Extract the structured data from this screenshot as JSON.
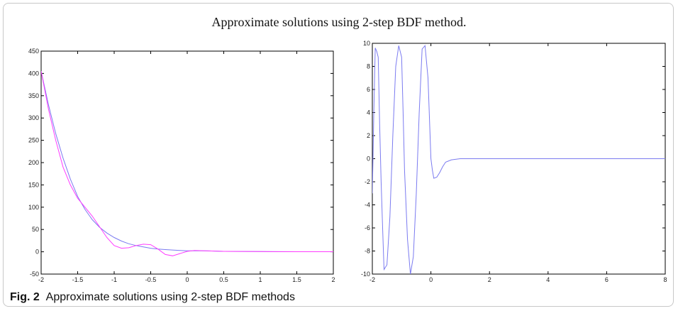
{
  "figure_title": "Approximate solutions using 2-step BDF method.",
  "caption": {
    "label": "Fig. 2",
    "text": "Approximate solutions using 2-step BDF methods"
  },
  "chart_data": [
    {
      "type": "line",
      "xlim": [
        -2,
        2
      ],
      "ylim": [
        -50,
        450
      ],
      "xticks": [
        -2,
        -1.5,
        -1,
        -0.5,
        0,
        0.5,
        1,
        1.5,
        2
      ],
      "xtick_labels": [
        "-2",
        "-1.5",
        "-1",
        "-0.5",
        "0",
        "0.5",
        "1",
        "1.5",
        "2"
      ],
      "yticks": [
        -50,
        0,
        50,
        100,
        150,
        200,
        250,
        300,
        350,
        400,
        450
      ],
      "ytick_labels": [
        "-50",
        "0",
        "50",
        "100",
        "150",
        "200",
        "250",
        "300",
        "350",
        "400",
        "450"
      ],
      "grid": false,
      "series": [
        {
          "color": "#7b7bf0",
          "x": [
            -2,
            -1.9,
            -1.8,
            -1.7,
            -1.6,
            -1.5,
            -1.4,
            -1.3,
            -1.2,
            -1.1,
            -1.0,
            -0.9,
            -0.8,
            -0.7,
            -0.6,
            -0.5,
            -0.4,
            -0.3,
            -0.2,
            -0.1,
            0,
            0.25,
            0.5,
            1.0,
            1.5,
            2.0
          ],
          "y": [
            405,
            330,
            265,
            210,
            163,
            124,
            95,
            72,
            55,
            42,
            32,
            24,
            18,
            14,
            11,
            8,
            6,
            5,
            4,
            3,
            2,
            2,
            1,
            0.5,
            0.2,
            0.1
          ]
        },
        {
          "color": "#ff3cff",
          "x": [
            -2,
            -1.9,
            -1.8,
            -1.7,
            -1.6,
            -1.5,
            -1.4,
            -1.3,
            -1.2,
            -1.1,
            -1.0,
            -0.9,
            -0.8,
            -0.7,
            -0.6,
            -0.5,
            -0.4,
            -0.3,
            -0.2,
            -0.1,
            0,
            0.1,
            0.25,
            0.5,
            1.0,
            1.5,
            2.0
          ],
          "y": [
            405,
            320,
            250,
            190,
            150,
            120,
            100,
            80,
            56,
            32,
            14,
            8,
            9,
            14,
            17,
            16,
            6,
            -6,
            -9,
            -4,
            1,
            3,
            2,
            1,
            0.5,
            0.2,
            0.1
          ]
        }
      ]
    },
    {
      "type": "line",
      "xlim": [
        -2,
        8
      ],
      "ylim": [
        -10,
        10
      ],
      "xticks": [
        -2,
        0,
        2,
        4,
        6,
        8
      ],
      "xtick_labels": [
        "-2",
        "0",
        "2",
        "4",
        "6",
        "8"
      ],
      "yticks": [
        -10,
        -8,
        -6,
        -4,
        -2,
        0,
        2,
        4,
        6,
        8,
        10
      ],
      "ytick_labels": [
        "-10",
        "-8",
        "-6",
        "-4",
        "-2",
        "0",
        "2",
        "4",
        "6",
        "8",
        "10"
      ],
      "grid": false,
      "series": [
        {
          "color": "#7b7bf0",
          "x": [
            -2,
            -1.95,
            -1.9,
            -1.85,
            -1.8,
            -1.75,
            -1.7,
            -1.65,
            -1.6,
            -1.5,
            -1.4,
            -1.3,
            -1.2,
            -1.1,
            -1.0,
            -0.95,
            -0.9,
            -0.8,
            -0.7,
            -0.6,
            -0.5,
            -0.4,
            -0.3,
            -0.2,
            -0.1,
            0,
            0.05,
            0.1,
            0.2,
            0.3,
            0.4,
            0.5,
            0.7,
            1.0,
            2.0,
            4.0,
            6.0,
            8.0
          ],
          "y": [
            -3,
            4,
            9.6,
            9.3,
            8.8,
            3,
            -2,
            -6,
            -9.6,
            -9.2,
            -5,
            2,
            8,
            9.8,
            8.8,
            4,
            -1,
            -7,
            -10,
            -8.5,
            -3,
            4,
            9.5,
            9.8,
            7,
            0,
            -1,
            -1.7,
            -1.6,
            -1.2,
            -0.7,
            -0.3,
            -0.1,
            0,
            0,
            0,
            0,
            0
          ]
        }
      ]
    }
  ]
}
